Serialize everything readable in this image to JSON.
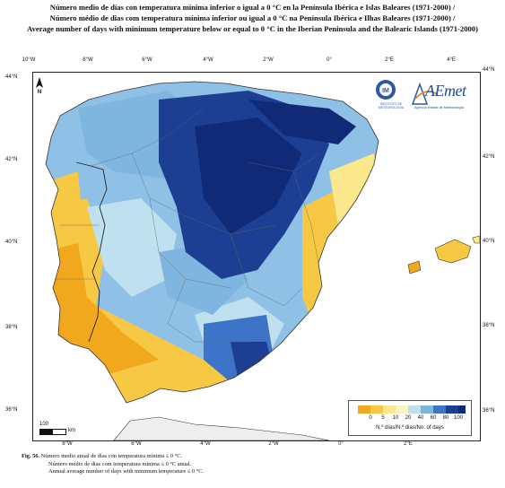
{
  "titles": {
    "line1": "Número medio de días con temperatura mínima inferior o igual a 0 °C en la Península Ibérica e Islas Baleares (1971-2000) /",
    "line2": "Número médio de dias com temperatura mínima inferior ou igual a 0 °C na Península Ibérica e Ilhas Baleares (1971-2000) /",
    "line3": "Average number of days with minimum temperature below or equal to 0 °C in the Iberian Peninsula and the Balearic Islands (1971-2000)"
  },
  "longitude_labels": [
    "10°W",
    "8°W",
    "6°W",
    "4°W",
    "2°W",
    "0°",
    "2°E",
    "4°E"
  ],
  "latitude_labels": [
    "44°N",
    "42°N",
    "40°N",
    "38°N",
    "36°N"
  ],
  "north_arrow": {
    "label": "N",
    "icon": "north-arrow-icon"
  },
  "scale_bar": {
    "value": "100",
    "unit": "km"
  },
  "logos": {
    "im": {
      "icon": "im-logo-icon",
      "text": "INSTITUTO DE METEOROLOGIA"
    },
    "aemet": {
      "icon": "aemet-logo-icon",
      "name": "AEmet",
      "text": "Agencia Estatal de Meteorología"
    }
  },
  "legend": {
    "title": "N.º días/N.º dias/No. of days",
    "ticks": [
      "0",
      "5",
      "10",
      "20",
      "40",
      "60",
      "80",
      "100"
    ],
    "colors": [
      "#f2a81c",
      "#f6c843",
      "#fbe88c",
      "#f8f4c8",
      "#bfe0ef",
      "#7fb6e0",
      "#3e74c8",
      "#1d3f93",
      "#102a78"
    ]
  },
  "caption": {
    "label": "Fig. 56.",
    "line1": "Número medio anual de días con temperatura mínima ≤ 0 °C.",
    "line2": "Número médio de dias com temperatura mínima ≤ 0 °C anual.",
    "line3": "Annual average number of days with minimum temperature ≤ 0 °C."
  }
}
